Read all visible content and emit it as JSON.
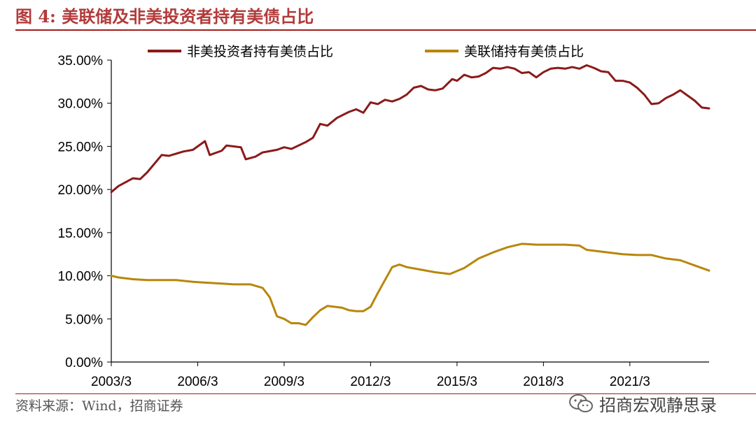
{
  "title": "图 4:  美联储及非美投资者持有美债占比",
  "source": "资料来源：Wind，招商证券",
  "watermark": {
    "text": "招商宏观静思录",
    "icon": "wechat-icon"
  },
  "chart_data": {
    "type": "line",
    "title": "",
    "xlabel": "",
    "ylabel": "",
    "x_range": [
      "2003-03",
      "2023-12"
    ],
    "xticks": [
      "2003/3",
      "2006/3",
      "2009/3",
      "2012/3",
      "2015/3",
      "2018/3",
      "2021/3"
    ],
    "ylim": [
      0,
      35
    ],
    "yticks": [
      "0.00%",
      "5.00%",
      "10.00%",
      "15.00%",
      "20.00%",
      "25.00%",
      "30.00%",
      "35.00%"
    ],
    "grid": false,
    "legend": "top",
    "series": [
      {
        "name": "非美投资者持有美债占比",
        "color": "#8b1a1a",
        "points": [
          [
            "2003-03",
            19.7
          ],
          [
            "2003-06",
            20.4
          ],
          [
            "2003-12",
            21.3
          ],
          [
            "2004-03",
            21.2
          ],
          [
            "2004-06",
            22.0
          ],
          [
            "2004-12",
            24.0
          ],
          [
            "2005-03",
            23.9
          ],
          [
            "2005-09",
            24.4
          ],
          [
            "2006-01",
            24.6
          ],
          [
            "2006-06",
            25.6
          ],
          [
            "2006-08",
            24.0
          ],
          [
            "2007-01",
            24.5
          ],
          [
            "2007-03",
            25.1
          ],
          [
            "2007-09",
            24.9
          ],
          [
            "2007-11",
            23.5
          ],
          [
            "2008-03",
            23.8
          ],
          [
            "2008-06",
            24.3
          ],
          [
            "2008-12",
            24.6
          ],
          [
            "2009-03",
            24.9
          ],
          [
            "2009-06",
            24.7
          ],
          [
            "2009-12",
            25.5
          ],
          [
            "2010-03",
            26.0
          ],
          [
            "2010-06",
            27.6
          ],
          [
            "2010-09",
            27.4
          ],
          [
            "2011-01",
            28.3
          ],
          [
            "2011-06",
            29.0
          ],
          [
            "2011-09",
            29.3
          ],
          [
            "2011-12",
            28.9
          ],
          [
            "2012-03",
            30.1
          ],
          [
            "2012-06",
            29.9
          ],
          [
            "2012-09",
            30.4
          ],
          [
            "2012-12",
            30.2
          ],
          [
            "2013-03",
            30.5
          ],
          [
            "2013-06",
            31.0
          ],
          [
            "2013-09",
            31.8
          ],
          [
            "2013-12",
            32.0
          ],
          [
            "2014-03",
            31.6
          ],
          [
            "2014-06",
            31.5
          ],
          [
            "2014-09",
            31.7
          ],
          [
            "2015-01",
            32.8
          ],
          [
            "2015-03",
            32.6
          ],
          [
            "2015-06",
            33.3
          ],
          [
            "2015-09",
            33.0
          ],
          [
            "2015-12",
            33.1
          ],
          [
            "2016-03",
            33.5
          ],
          [
            "2016-06",
            34.1
          ],
          [
            "2016-09",
            34.0
          ],
          [
            "2016-12",
            34.2
          ],
          [
            "2017-03",
            34.0
          ],
          [
            "2017-06",
            33.5
          ],
          [
            "2017-09",
            33.6
          ],
          [
            "2017-12",
            33.0
          ],
          [
            "2018-03",
            33.6
          ],
          [
            "2018-06",
            34.0
          ],
          [
            "2018-09",
            34.1
          ],
          [
            "2018-12",
            34.0
          ],
          [
            "2019-03",
            34.2
          ],
          [
            "2019-06",
            34.0
          ],
          [
            "2019-09",
            34.4
          ],
          [
            "2019-12",
            34.1
          ],
          [
            "2020-03",
            33.7
          ],
          [
            "2020-06",
            33.6
          ],
          [
            "2020-09",
            32.6
          ],
          [
            "2020-12",
            32.6
          ],
          [
            "2021-03",
            32.4
          ],
          [
            "2021-06",
            31.8
          ],
          [
            "2021-09",
            31.0
          ],
          [
            "2021-12",
            29.9
          ],
          [
            "2022-03",
            30.0
          ],
          [
            "2022-06",
            30.6
          ],
          [
            "2022-09",
            31.0
          ],
          [
            "2022-12",
            31.5
          ],
          [
            "2023-03",
            30.9
          ],
          [
            "2023-06",
            30.3
          ],
          [
            "2023-09",
            29.5
          ],
          [
            "2023-12",
            29.4
          ]
        ]
      },
      {
        "name": "美联储持有美债占比",
        "color": "#b8860b",
        "points": [
          [
            "2003-03",
            10.0
          ],
          [
            "2003-06",
            9.8
          ],
          [
            "2003-12",
            9.6
          ],
          [
            "2004-06",
            9.5
          ],
          [
            "2005-01",
            9.5
          ],
          [
            "2005-06",
            9.5
          ],
          [
            "2006-01",
            9.3
          ],
          [
            "2006-06",
            9.2
          ],
          [
            "2007-01",
            9.1
          ],
          [
            "2007-06",
            9.0
          ],
          [
            "2008-01",
            9.0
          ],
          [
            "2008-06",
            8.6
          ],
          [
            "2008-09",
            7.5
          ],
          [
            "2008-12",
            5.3
          ],
          [
            "2009-03",
            5.0
          ],
          [
            "2009-06",
            4.5
          ],
          [
            "2009-09",
            4.5
          ],
          [
            "2009-12",
            4.3
          ],
          [
            "2010-03",
            5.2
          ],
          [
            "2010-06",
            6.0
          ],
          [
            "2010-09",
            6.5
          ],
          [
            "2010-12",
            6.4
          ],
          [
            "2011-03",
            6.3
          ],
          [
            "2011-06",
            6.0
          ],
          [
            "2011-09",
            5.9
          ],
          [
            "2011-12",
            5.9
          ],
          [
            "2012-03",
            6.4
          ],
          [
            "2012-06",
            8.0
          ],
          [
            "2012-09",
            9.5
          ],
          [
            "2012-12",
            11.0
          ],
          [
            "2013-03",
            11.3
          ],
          [
            "2013-06",
            11.0
          ],
          [
            "2013-12",
            10.7
          ],
          [
            "2014-06",
            10.4
          ],
          [
            "2014-12",
            10.2
          ],
          [
            "2015-06",
            10.9
          ],
          [
            "2015-12",
            12.0
          ],
          [
            "2016-06",
            12.7
          ],
          [
            "2016-12",
            13.3
          ],
          [
            "2017-06",
            13.7
          ],
          [
            "2017-12",
            13.6
          ],
          [
            "2018-06",
            13.6
          ],
          [
            "2018-12",
            13.6
          ],
          [
            "2019-06",
            13.5
          ],
          [
            "2019-09",
            13.0
          ],
          [
            "2019-12",
            12.9
          ],
          [
            "2020-06",
            12.7
          ],
          [
            "2020-12",
            12.5
          ],
          [
            "2021-06",
            12.4
          ],
          [
            "2021-12",
            12.4
          ],
          [
            "2022-06",
            12.0
          ],
          [
            "2022-12",
            11.8
          ],
          [
            "2023-06",
            11.2
          ],
          [
            "2023-12",
            10.6
          ]
        ]
      }
    ]
  }
}
